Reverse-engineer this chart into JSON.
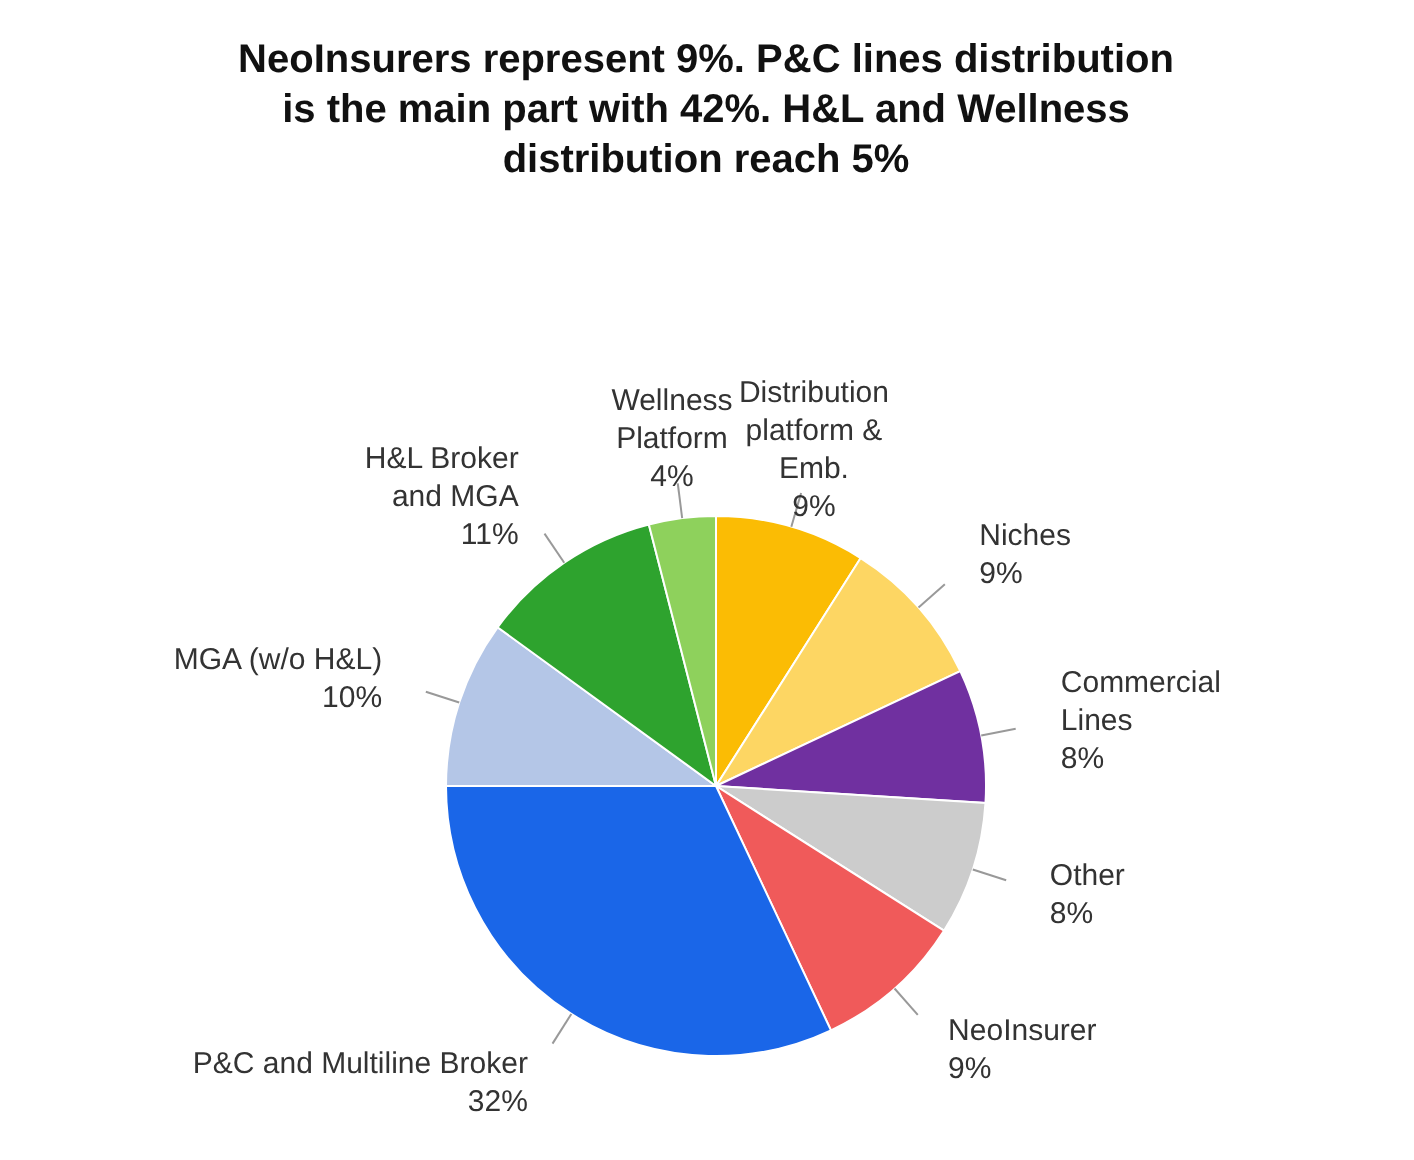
{
  "chart_data": {
    "type": "pie",
    "title": "NeoInsurers represent 9%. P&C lines distribution is the main part with 42%. H&L and Wellness distribution reach 5%",
    "categories": [
      "Distribution platform & Emb.",
      "Niches",
      "Commercial Lines",
      "Other",
      "NeoInsurer",
      "P&C and Multiline Broker",
      "MGA (w/o H&L)",
      "H&L Broker and MGA",
      "Wellness Platform"
    ],
    "values": [
      9,
      9,
      8,
      8,
      9,
      32,
      10,
      11,
      4
    ],
    "value_labels": [
      "9%",
      "9%",
      "8%",
      "8%",
      "9%",
      "32%",
      "10%",
      "11%",
      "4%"
    ],
    "colors": [
      "#fbbc04",
      "#fdd663",
      "#7030a0",
      "#cccccc",
      "#f05a5a",
      "#1a66e8",
      "#b4c6e7",
      "#2ea32e",
      "#8ed15c"
    ]
  }
}
